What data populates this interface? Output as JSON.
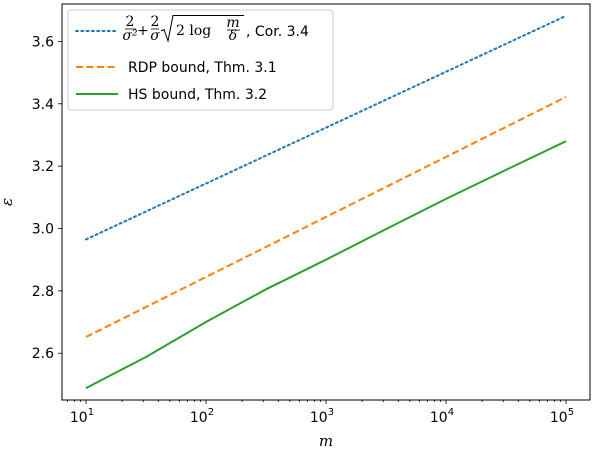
{
  "chart_data": {
    "type": "line",
    "xlabel": "m",
    "ylabel": "ε",
    "xscale": "log",
    "xlim": [
      10,
      100000
    ],
    "ylim": [
      2.45,
      3.72
    ],
    "x_ticks": [
      {
        "value": 10,
        "base": "10",
        "exp": "1"
      },
      {
        "value": 100,
        "base": "10",
        "exp": "2"
      },
      {
        "value": 1000,
        "base": "10",
        "exp": "3"
      },
      {
        "value": 10000,
        "base": "10",
        "exp": "4"
      },
      {
        "value": 100000,
        "base": "10",
        "exp": "5"
      }
    ],
    "y_ticks": [
      "2.6",
      "2.8",
      "3.0",
      "3.2",
      "3.4",
      "3.6"
    ],
    "grid": false,
    "legend_position": "top-left",
    "series": [
      {
        "name": "2/σ² + 2/σ √(2 log m/δ), Cor. 3.4",
        "suffix": ", Cor. 3.4",
        "color": "#1f77b4",
        "style": "dotted",
        "points": [
          [
            10,
            2.965
          ],
          [
            100000,
            3.682
          ]
        ]
      },
      {
        "name": "RDP bound, Thm. 3.1",
        "color": "#ff7f0e",
        "style": "dashed",
        "points": [
          [
            10,
            2.652
          ],
          [
            100000,
            3.422
          ]
        ]
      },
      {
        "name": "HS bound, Thm. 3.2",
        "color": "#2ca02c",
        "style": "solid",
        "points": [
          [
            10,
            2.488
          ],
          [
            31.6,
            2.588
          ],
          [
            100,
            2.7
          ],
          [
            316,
            2.805
          ],
          [
            1000,
            2.9
          ],
          [
            3162,
            2.998
          ],
          [
            10000,
            3.095
          ],
          [
            31623,
            3.188
          ],
          [
            100000,
            3.28
          ]
        ]
      }
    ]
  }
}
